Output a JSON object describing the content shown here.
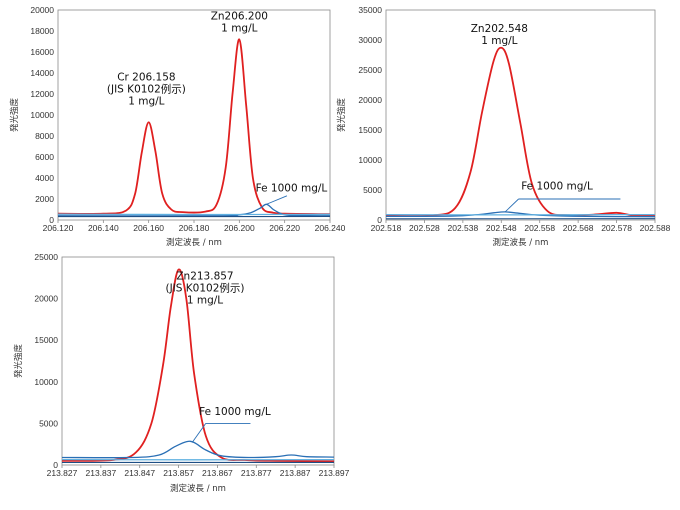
{
  "chart_data": [
    {
      "type": "line",
      "xlabel": "測定波長 / nm",
      "ylabel": "発光強度",
      "xlim": [
        206.12,
        206.24
      ],
      "ylim": [
        0,
        20000
      ],
      "x_ticks": [
        "206.120",
        "206.140",
        "206.160",
        "206.180",
        "206.200",
        "206.220",
        "206.240"
      ],
      "y_ticks": [
        "0",
        "2000",
        "4000",
        "6000",
        "8000",
        "10000",
        "12000",
        "14000",
        "16000",
        "18000",
        "20000"
      ],
      "annotations": [
        {
          "lines": [
            "Zn206.200",
            "1 mg/L"
          ],
          "x": 206.2,
          "y": 19100
        },
        {
          "lines": [
            "Cr 206.158",
            "(JIS K0102例示)",
            "1 mg/L"
          ],
          "x": 206.159,
          "y": 13300
        },
        {
          "lines": [
            "Fe 1000 mg/L"
          ],
          "x": 206.223,
          "y": 2700
        }
      ],
      "series": [
        {
          "color": "#e02020",
          "width": 1.8,
          "x": [
            206.12,
            206.14,
            206.15,
            206.154,
            206.157,
            206.16,
            206.163,
            206.166,
            206.17,
            206.175,
            206.185,
            206.19,
            206.194,
            206.197,
            206.2,
            206.203,
            206.206,
            206.21,
            206.215,
            206.22,
            206.24
          ],
          "y": [
            600,
            600,
            900,
            2500,
            6500,
            9300,
            6500,
            2500,
            1000,
            750,
            800,
            1500,
            5000,
            12000,
            17200,
            11000,
            4000,
            1200,
            700,
            600,
            550
          ]
        },
        {
          "color": "#2a6fb5",
          "width": 1.3,
          "x": [
            206.12,
            206.19,
            206.2,
            206.205,
            206.209,
            206.212,
            206.215,
            206.218,
            206.222,
            206.24
          ],
          "y": [
            400,
            400,
            500,
            700,
            1100,
            1500,
            1000,
            650,
            450,
            400
          ]
        },
        {
          "color": "#5fb0e0",
          "width": 1.3,
          "x": [
            206.12,
            206.18,
            206.24
          ],
          "y": [
            550,
            520,
            540
          ]
        },
        {
          "color": "#1e4f85",
          "width": 1.1,
          "x": [
            206.12,
            206.24
          ],
          "y": [
            320,
            330
          ]
        }
      ],
      "leader": {
        "from": [
          206.212,
          1500
        ],
        "to": [
          206.221,
          2300
        ]
      }
    },
    {
      "type": "line",
      "xlabel": "測定波長 / nm",
      "ylabel": "発光強度",
      "xlim": [
        202.518,
        202.588
      ],
      "ylim": [
        0,
        35000
      ],
      "x_ticks": [
        "202.518",
        "202.528",
        "202.538",
        "202.548",
        "202.558",
        "202.568",
        "202.578",
        "202.588"
      ],
      "y_ticks": [
        "0",
        "5000",
        "10000",
        "15000",
        "20000",
        "25000",
        "30000",
        "35000"
      ],
      "annotations": [
        {
          "lines": [
            "Zn202.548",
            "1 mg/L"
          ],
          "x": 202.5475,
          "y": 31300
        },
        {
          "lines": [
            "Fe 1000 mg/L"
          ],
          "x": 202.5625,
          "y": 5100
        }
      ],
      "series": [
        {
          "color": "#e02020",
          "width": 1.8,
          "x": [
            202.518,
            202.53,
            202.536,
            202.54,
            202.543,
            202.546,
            202.548,
            202.55,
            202.553,
            202.556,
            202.56,
            202.565,
            202.572,
            202.578,
            202.582,
            202.588
          ],
          "y": [
            700,
            750,
            2000,
            8000,
            18000,
            26500,
            28700,
            26000,
            16000,
            6000,
            1500,
            800,
            900,
            1200,
            800,
            700
          ]
        },
        {
          "color": "#2a6fb5",
          "width": 1.3,
          "x": [
            202.518,
            202.535,
            202.542,
            202.546,
            202.549,
            202.553,
            202.558,
            202.57,
            202.588
          ],
          "y": [
            600,
            650,
            900,
            1200,
            1350,
            1100,
            800,
            600,
            550
          ]
        },
        {
          "color": "#5fb0e0",
          "width": 1.3,
          "x": [
            202.518,
            202.55,
            202.588
          ],
          "y": [
            900,
            850,
            900
          ]
        },
        {
          "color": "#1e4f85",
          "width": 1.1,
          "x": [
            202.518,
            202.588
          ],
          "y": [
            200,
            220
          ]
        }
      ],
      "leader": {
        "from": [
          202.549,
          1350
        ],
        "to": [
          202.5525,
          3500
        ]
      },
      "leader2": {
        "from": [
          202.5525,
          3500
        ],
        "to": [
          202.579,
          3500
        ]
      }
    },
    {
      "type": "line",
      "xlabel": "測定波長 / nm",
      "ylabel": "発光強度",
      "xlim": [
        213.827,
        213.897
      ],
      "ylim": [
        0,
        25000
      ],
      "x_ticks": [
        "213.827",
        "213.837",
        "213.847",
        "213.857",
        "213.867",
        "213.877",
        "213.887",
        "213.897"
      ],
      "y_ticks": [
        "0",
        "5000",
        "10000",
        "15000",
        "20000",
        "25000"
      ],
      "annotations": [
        {
          "lines": [
            "Zn213.857",
            "(JIS K0102例示)",
            "1 mg/L"
          ],
          "x": 213.8638,
          "y": 22300
        },
        {
          "lines": [
            "Fe 1000 mg/L"
          ],
          "x": 213.8715,
          "y": 6000
        }
      ],
      "series": [
        {
          "color": "#e02020",
          "width": 1.8,
          "x": [
            213.827,
            213.84,
            213.846,
            213.85,
            213.853,
            213.855,
            213.857,
            213.859,
            213.861,
            213.864,
            213.868,
            213.874,
            213.882,
            213.897
          ],
          "y": [
            500,
            600,
            1500,
            5000,
            12000,
            19000,
            23500,
            20000,
            11000,
            3500,
            900,
            600,
            500,
            450
          ]
        },
        {
          "color": "#2a6fb5",
          "width": 1.3,
          "x": [
            213.827,
            213.845,
            213.852,
            213.856,
            213.859,
            213.861,
            213.864,
            213.868,
            213.875,
            213.882,
            213.886,
            213.89,
            213.897
          ],
          "y": [
            900,
            900,
            1200,
            2200,
            2800,
            2700,
            1800,
            1100,
            900,
            1000,
            1200,
            1000,
            950
          ]
        },
        {
          "color": "#5fb0e0",
          "width": 1.3,
          "x": [
            213.827,
            213.86,
            213.897
          ],
          "y": [
            650,
            620,
            650
          ]
        },
        {
          "color": "#1e4f85",
          "width": 1.1,
          "x": [
            213.827,
            213.897
          ],
          "y": [
            300,
            310
          ]
        }
      ],
      "leader": {
        "from": [
          213.8605,
          2700
        ],
        "to": [
          213.864,
          5000
        ]
      },
      "leader2": {
        "from": [
          213.864,
          5000
        ],
        "to": [
          213.8755,
          5000
        ]
      }
    }
  ]
}
